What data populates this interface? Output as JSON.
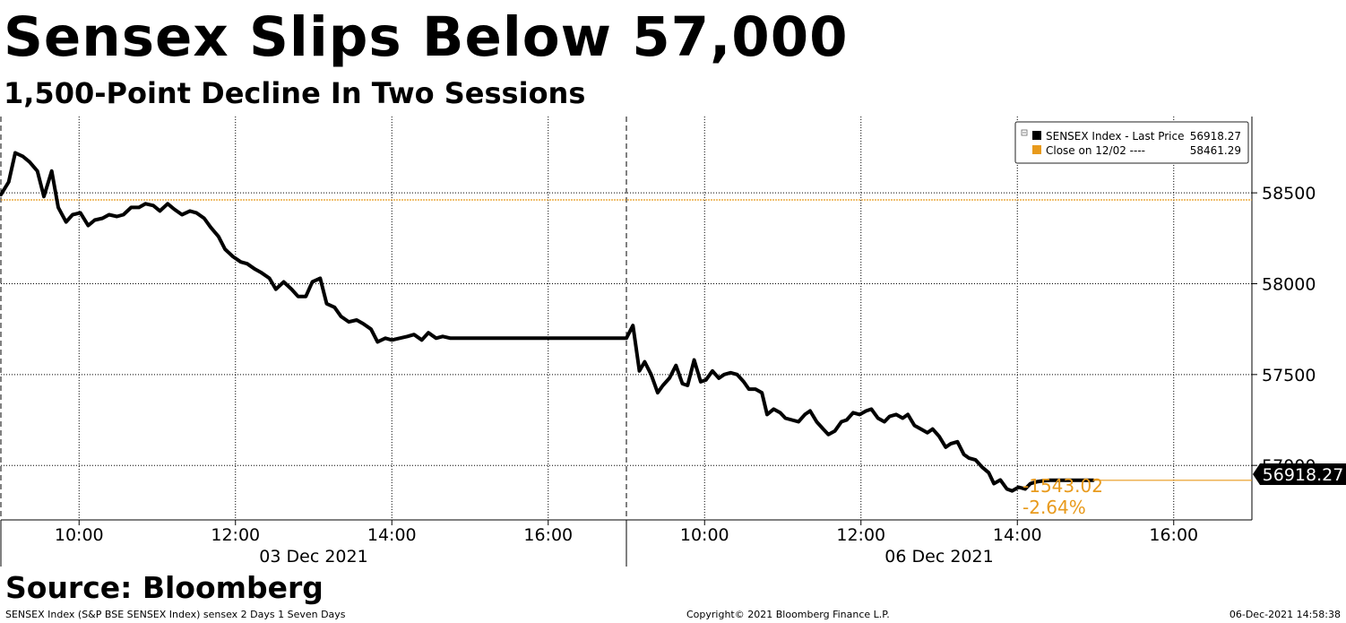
{
  "header": {
    "title": "Sensex Slips Below 57,000",
    "subtitle": "1,500-Point Decline In Two Sessions"
  },
  "footer": {
    "source": "Source: Bloomberg",
    "description": "SENSEX Index (S&P BSE SENSEX Index) sensex 2 Days 1 Seven Days",
    "copyright": "Copyright© 2021 Bloomberg Finance L.P.",
    "timestamp": "06-Dec-2021 14:58:38"
  },
  "colors": {
    "price_line": "#000000",
    "reference": "#e89a1c",
    "grid": "#000000"
  },
  "chart_data": {
    "type": "line",
    "title": "Sensex Slips Below 57,000",
    "subtitle": "1,500-Point Decline In Two Sessions",
    "ylim": [
      56700,
      58920
    ],
    "y_ticks": [
      57000,
      57500,
      58000,
      58500
    ],
    "y_tick_labels": [
      "57000",
      "57500",
      "58000",
      "58500"
    ],
    "grid": true,
    "legend_position": "top-right",
    "legend": [
      {
        "marker_color": "#000000",
        "label": "SENSEX Index - Last Price",
        "value": "56918.27"
      },
      {
        "marker_color": "#e89a1c",
        "label": "Close on 12/02 ----",
        "value": "58461.29"
      }
    ],
    "last_price_label": "56918.27",
    "change_label": "-1543.02",
    "change_pct_label": "-2.64%",
    "reference_value": 58461.29,
    "days": [
      {
        "date_label": "03 Dec 2021",
        "x_range": [
          "09:00",
          "17:00"
        ],
        "x_ticks": [
          "10:00",
          "12:00",
          "14:00",
          "16:00"
        ]
      },
      {
        "date_label": "06 Dec 2021",
        "x_range": [
          "09:00",
          "17:00"
        ],
        "x_ticks": [
          "10:00",
          "12:00",
          "14:00",
          "16:00"
        ]
      }
    ],
    "series": [
      {
        "name": "SENSEX Index - Last Price",
        "day1": {
          "x": [
            "09:00",
            "09:06",
            "09:11",
            "09:17",
            "09:22",
            "09:28",
            "09:33",
            "09:39",
            "09:44",
            "09:50",
            "09:55",
            "10:01",
            "10:07",
            "10:12",
            "10:18",
            "10:23",
            "10:29",
            "10:34",
            "10:40",
            "10:46",
            "10:51",
            "10:57",
            "11:02",
            "11:08",
            "11:13",
            "11:19",
            "11:25",
            "11:30",
            "11:36",
            "11:41",
            "11:47",
            "11:52",
            "11:58",
            "12:04",
            "12:09",
            "12:15",
            "12:20",
            "12:26",
            "12:31",
            "12:37",
            "12:43",
            "12:48",
            "12:54",
            "12:59",
            "13:05",
            "13:10",
            "13:16",
            "13:21",
            "13:27",
            "13:33",
            "13:38",
            "13:44",
            "13:49",
            "13:55",
            "14:00",
            "14:06",
            "14:12",
            "14:17",
            "14:23",
            "14:28",
            "14:34",
            "14:39",
            "14:45",
            "14:51",
            "14:56",
            "15:02",
            "15:07",
            "15:13",
            "15:18",
            "15:24",
            "15:29",
            "15:30",
            "16:00",
            "16:30",
            "16:55"
          ],
          "y": [
            58490,
            58560,
            58720,
            58700,
            58670,
            58620,
            58480,
            58620,
            58420,
            58340,
            58380,
            58390,
            58320,
            58350,
            58360,
            58380,
            58370,
            58380,
            58420,
            58420,
            58440,
            58430,
            58400,
            58440,
            58410,
            58380,
            58400,
            58390,
            58360,
            58310,
            58260,
            58190,
            58150,
            58120,
            58110,
            58080,
            58060,
            58030,
            57970,
            58010,
            57970,
            57930,
            57930,
            58010,
            58030,
            57890,
            57870,
            57820,
            57790,
            57800,
            57780,
            57750,
            57680,
            57700,
            57690,
            57700,
            57710,
            57720,
            57690,
            57730,
            57700,
            57710,
            57700,
            57700,
            57700,
            57700,
            57700,
            57700,
            57700,
            57700,
            57700,
            57700,
            57700,
            57700,
            57700
          ]
        },
        "day2": {
          "x": [
            "09:00",
            "09:05",
            "09:10",
            "09:14",
            "09:19",
            "09:24",
            "09:28",
            "09:33",
            "09:38",
            "09:43",
            "09:47",
            "09:52",
            "09:57",
            "10:01",
            "10:06",
            "10:11",
            "10:15",
            "10:20",
            "10:25",
            "10:30",
            "10:34",
            "10:39",
            "10:44",
            "10:48",
            "10:53",
            "10:58",
            "11:02",
            "11:07",
            "11:12",
            "11:17",
            "11:21",
            "11:26",
            "11:31",
            "11:35",
            "11:40",
            "11:45",
            "11:49",
            "11:54",
            "11:59",
            "12:04",
            "12:08",
            "12:13",
            "12:18",
            "12:22",
            "12:27",
            "12:32",
            "12:36",
            "12:41",
            "12:46",
            "12:51",
            "12:55",
            "13:00",
            "13:05",
            "13:09",
            "13:14",
            "13:19",
            "13:23",
            "13:28",
            "13:33",
            "13:38",
            "13:42",
            "13:47",
            "13:52",
            "13:56",
            "14:01",
            "14:06",
            "14:10",
            "14:15",
            "14:20",
            "14:25",
            "14:29",
            "14:34",
            "14:39",
            "14:43",
            "14:48",
            "14:53",
            "14:58"
          ],
          "y": [
            57700,
            57770,
            57520,
            57570,
            57500,
            57400,
            57440,
            57480,
            57550,
            57450,
            57440,
            57580,
            57460,
            57470,
            57520,
            57480,
            57500,
            57510,
            57500,
            57460,
            57420,
            57420,
            57400,
            57280,
            57310,
            57290,
            57260,
            57250,
            57240,
            57280,
            57300,
            57240,
            57200,
            57170,
            57190,
            57240,
            57250,
            57290,
            57280,
            57300,
            57310,
            57260,
            57240,
            57270,
            57280,
            57260,
            57280,
            57220,
            57200,
            57180,
            57200,
            57160,
            57100,
            57120,
            57130,
            57060,
            57040,
            57030,
            56990,
            56960,
            56900,
            56920,
            56870,
            56860,
            56880,
            56870,
            56900,
            56910,
            56915,
            56918,
            56918,
            56918,
            56918,
            56918,
            56918,
            56918,
            56918
          ]
        }
      },
      {
        "name": "Close on 12/02",
        "value": 58461.29
      }
    ]
  }
}
